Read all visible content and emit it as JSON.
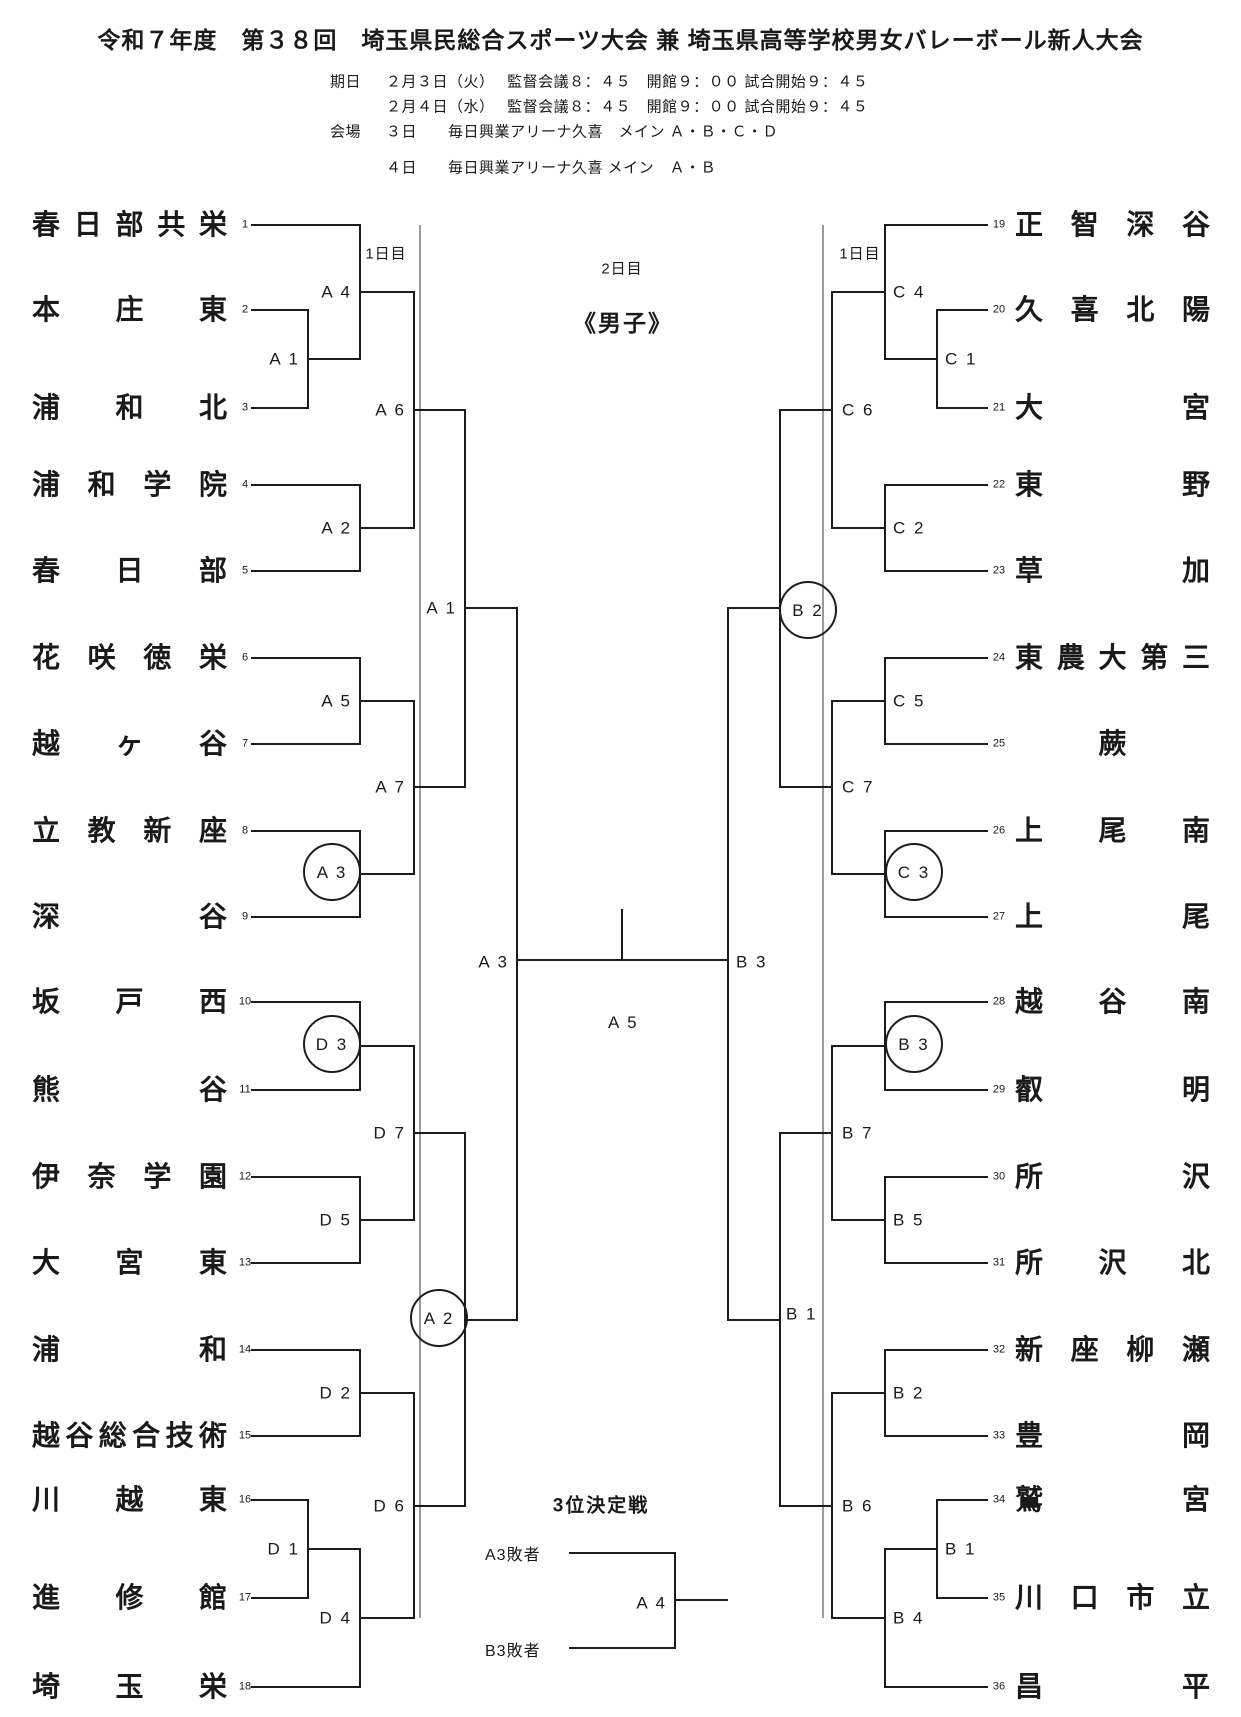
{
  "header": {
    "title": "令和７年度　第３８回　埼玉県民総合スポーツ大会 兼 埼玉県高等学校男女バレーボール新人大会",
    "schedule": {
      "date_label": "期日",
      "date_line1": "２月３日（火）　 監督会議８：４５　開館９：００ 試合開始９：４５",
      "date_line2": "２月４日（水）　 監督会議８：４５　開館９：００ 試合開始９：４５",
      "venue_label": "会場",
      "venue_line1": "３日　　毎日興業アリーナ久喜　メイン Ａ・Ｂ・Ｃ・Ｄ",
      "venue_line2": "４日　　毎日興業アリーナ久喜 メイン　Ａ・Ｂ"
    }
  },
  "bracket": {
    "day1_left": "1日目",
    "day1_right": "1日目",
    "day2": "2日目",
    "category": "《男子》",
    "final_match_label": "A 5",
    "third_place": {
      "title": "3位決定戦",
      "slot1": "A3敗者",
      "slot2": "B3敗者",
      "label": "A 4"
    },
    "teams_left": [
      {
        "no": "1",
        "name": "春日部共栄"
      },
      {
        "no": "2",
        "name": "本庄東"
      },
      {
        "no": "3",
        "name": "浦和北"
      },
      {
        "no": "4",
        "name": "浦和学院"
      },
      {
        "no": "5",
        "name": "春日部"
      },
      {
        "no": "6",
        "name": "花咲徳栄"
      },
      {
        "no": "7",
        "name": "越ヶ谷"
      },
      {
        "no": "8",
        "name": "立教新座"
      },
      {
        "no": "9",
        "name": "深谷"
      },
      {
        "no": "10",
        "name": "坂戸西"
      },
      {
        "no": "11",
        "name": "熊谷"
      },
      {
        "no": "12",
        "name": "伊奈学園"
      },
      {
        "no": "13",
        "name": "大宮東"
      },
      {
        "no": "14",
        "name": "浦和"
      },
      {
        "no": "15",
        "name": "越谷総合技術"
      },
      {
        "no": "16",
        "name": "川越東"
      },
      {
        "no": "17",
        "name": "進修館"
      },
      {
        "no": "18",
        "name": "埼玉栄"
      }
    ],
    "teams_right": [
      {
        "no": "19",
        "name": "正智深谷"
      },
      {
        "no": "20",
        "name": "久喜北陽"
      },
      {
        "no": "21",
        "name": "大宮"
      },
      {
        "no": "22",
        "name": "東野"
      },
      {
        "no": "23",
        "name": "草加"
      },
      {
        "no": "24",
        "name": "東農大第三"
      },
      {
        "no": "25",
        "name": "蕨"
      },
      {
        "no": "26",
        "name": "上尾南"
      },
      {
        "no": "27",
        "name": "上尾"
      },
      {
        "no": "28",
        "name": "越谷南"
      },
      {
        "no": "29",
        "name": "叡明"
      },
      {
        "no": "30",
        "name": "所沢"
      },
      {
        "no": "31",
        "name": "所沢北"
      },
      {
        "no": "32",
        "name": "新座柳瀬"
      },
      {
        "no": "33",
        "name": "豊岡"
      },
      {
        "no": "34",
        "name": "鷲宮"
      },
      {
        "no": "35",
        "name": "川口市立"
      },
      {
        "no": "36",
        "name": "昌平"
      }
    ],
    "matches_left": [
      {
        "id": "A1",
        "label": "A 1",
        "circled": false
      },
      {
        "id": "A4",
        "label": "A 4",
        "circled": false
      },
      {
        "id": "A2",
        "label": "A 2",
        "circled": false
      },
      {
        "id": "A6",
        "label": "A 6",
        "circled": false
      },
      {
        "id": "A5",
        "label": "A 5",
        "circled": false
      },
      {
        "id": "A3",
        "label": "A 3",
        "circled": true
      },
      {
        "id": "A7",
        "label": "A 7",
        "circled": false
      },
      {
        "id": "A1_2",
        "label": "A 1",
        "circled": false
      },
      {
        "id": "D3",
        "label": "D 3",
        "circled": true
      },
      {
        "id": "D5",
        "label": "D 5",
        "circled": false
      },
      {
        "id": "D7",
        "label": "D 7",
        "circled": false
      },
      {
        "id": "D2",
        "label": "D 2",
        "circled": false
      },
      {
        "id": "D1",
        "label": "D 1",
        "circled": false
      },
      {
        "id": "D4",
        "label": "D 4",
        "circled": false
      },
      {
        "id": "D6",
        "label": "D 6",
        "circled": false
      },
      {
        "id": "A2_2",
        "label": "A 2",
        "circled": true
      },
      {
        "id": "A3_2",
        "label": "A 3",
        "circled": false
      }
    ],
    "matches_right": [
      {
        "id": "C1",
        "label": "C 1",
        "circled": false
      },
      {
        "id": "C4",
        "label": "C 4",
        "circled": false
      },
      {
        "id": "C2",
        "label": "C 2",
        "circled": false
      },
      {
        "id": "C6",
        "label": "C 6",
        "circled": false
      },
      {
        "id": "C5",
        "label": "C 5",
        "circled": false
      },
      {
        "id": "C3",
        "label": "C 3",
        "circled": true
      },
      {
        "id": "C7",
        "label": "C 7",
        "circled": false
      },
      {
        "id": "B2_2",
        "label": "B 2",
        "circled": true
      },
      {
        "id": "B3",
        "label": "B 3",
        "circled": true
      },
      {
        "id": "B5",
        "label": "B 5",
        "circled": false
      },
      {
        "id": "B7",
        "label": "B 7",
        "circled": false
      },
      {
        "id": "B2",
        "label": "B 2",
        "circled": false
      },
      {
        "id": "B1",
        "label": "B 1",
        "circled": false
      },
      {
        "id": "B4",
        "label": "B 4",
        "circled": false
      },
      {
        "id": "B6",
        "label": "B 6",
        "circled": false
      },
      {
        "id": "B1_2",
        "label": "B 1",
        "circled": false
      },
      {
        "id": "B3_2",
        "label": "B 3",
        "circled": false
      }
    ]
  }
}
